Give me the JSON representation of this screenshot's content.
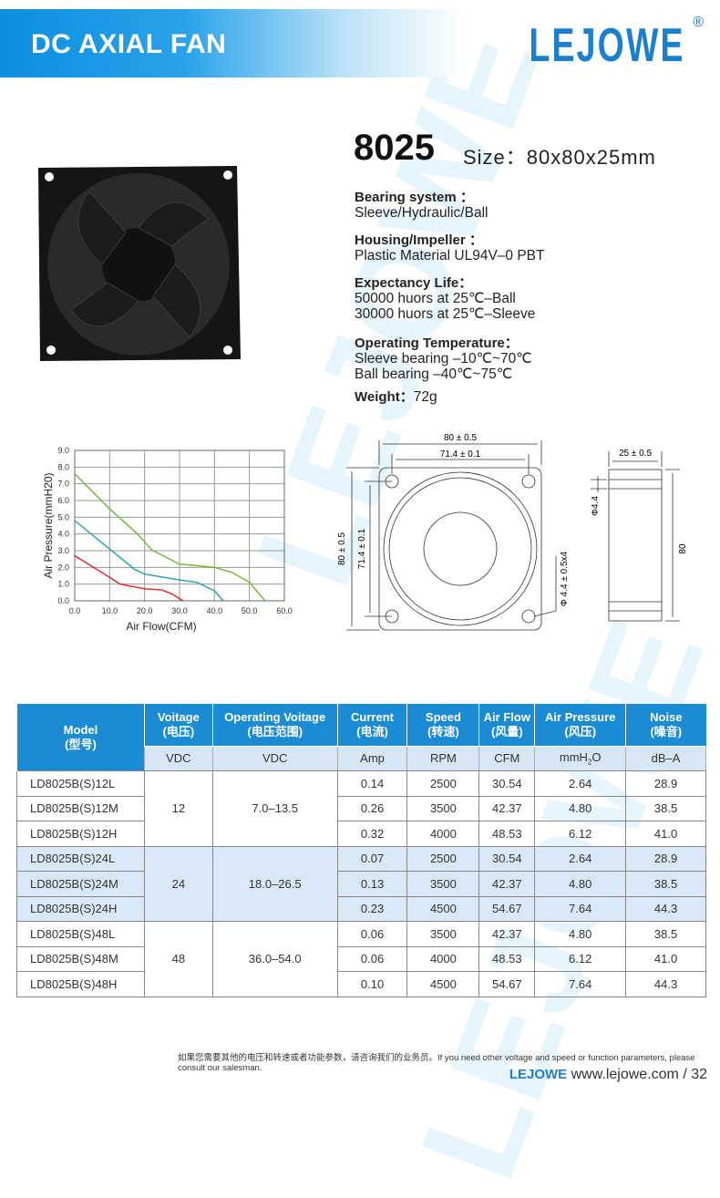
{
  "header": {
    "banner": "DC AXIAL FAN",
    "brand": "LEJOWE",
    "reg": "®"
  },
  "product": {
    "model": "8025",
    "size": "Size：80x80x25mm",
    "specs": [
      {
        "label": "Bearing system ：",
        "lines": [
          "Sleeve/Hydraulic/Ball"
        ]
      },
      {
        "label": "Housing/Impeller ：",
        "lines": [
          "Plastic Material UL94V–0 PBT"
        ]
      },
      {
        "label": "Expectancy Life：",
        "lines": [
          "50000 huors at 25℃–Ball",
          "30000 huors at 25℃–Sleeve"
        ]
      },
      {
        "label": "Operating Temperature：",
        "lines": [
          "Sleeve bearing –10℃~70℃",
          "Ball  bearing –40℃~75℃"
        ]
      }
    ],
    "weight_label": "Weight：",
    "weight": "72g"
  },
  "drawing": {
    "w": "80 ± 0.5",
    "hole": "71.4 ± 0.1",
    "h": "80 ± 0.5",
    "hole_v": "71.4 ± 0.1",
    "hole_d": "Φ 4.4 ± 0.5x4",
    "depth": "25 ± 0.5",
    "phi": "Φ4.4",
    "side_h": "80"
  },
  "chart_data": {
    "type": "line",
    "xlabel": "Air Flow(CFM)",
    "ylabel": "Air Pressure(mmH20)",
    "xlim": [
      0,
      60
    ],
    "ylim": [
      0,
      9
    ],
    "grid": true,
    "xticks": [
      "0.0",
      "10.0",
      "20.0",
      "30.0",
      "40.0",
      "50.0",
      "60.0"
    ],
    "yticks": [
      "0.0",
      "1.0",
      "2.0",
      "3.0",
      "4.0",
      "5.0",
      "6.0",
      "7.0",
      "8.0",
      "9.0"
    ],
    "series": [
      {
        "color": "#6cb52d",
        "points": [
          [
            0,
            7.6
          ],
          [
            10,
            5.5
          ],
          [
            18,
            4.0
          ],
          [
            22,
            3.05
          ],
          [
            30,
            2.2
          ],
          [
            40,
            2.0
          ],
          [
            45,
            1.7
          ],
          [
            50,
            1.1
          ],
          [
            54.5,
            0
          ]
        ]
      },
      {
        "color": "#1f9eb5",
        "points": [
          [
            0,
            4.8
          ],
          [
            10,
            3.1
          ],
          [
            17,
            1.9
          ],
          [
            20,
            1.6
          ],
          [
            30,
            1.25
          ],
          [
            35,
            1.1
          ],
          [
            40,
            0.6
          ],
          [
            42.5,
            0
          ]
        ]
      },
      {
        "color": "#e2231a",
        "points": [
          [
            0,
            2.7
          ],
          [
            10,
            1.4
          ],
          [
            13,
            1.0
          ],
          [
            20,
            0.72
          ],
          [
            25,
            0.65
          ],
          [
            28,
            0.4
          ],
          [
            31,
            0
          ]
        ]
      }
    ]
  },
  "table": {
    "headers": [
      [
        "Model",
        "(型号)"
      ],
      [
        "Voitage",
        "(电压)"
      ],
      [
        "Operating Voitage",
        "(电压范围)"
      ],
      [
        "Current",
        "(电流)"
      ],
      [
        "Speed",
        "(转速)"
      ],
      [
        "Air Flow",
        "(风量)"
      ],
      [
        "Air Pressure",
        "(风压)"
      ],
      [
        "Noise",
        "(噪音)"
      ]
    ],
    "units": [
      "VDC",
      "VDC",
      "Amp",
      "RPM",
      "CFM",
      "mmH",
      "2",
      "O",
      "dB–A"
    ],
    "groups": [
      {
        "voltage": "12",
        "range": "7.0–13.5",
        "rows": [
          [
            "LD8025B(S)12L",
            "0.14",
            "2500",
            "30.54",
            "2.64",
            "28.9"
          ],
          [
            "LD8025B(S)12M",
            "0.26",
            "3500",
            "42.37",
            "4.80",
            "38.5"
          ],
          [
            "LD8025B(S)12H",
            "0.32",
            "4000",
            "48.53",
            "6.12",
            "41.0"
          ]
        ]
      },
      {
        "voltage": "24",
        "range": "18.0–26.5",
        "rows": [
          [
            "LD8025B(S)24L",
            "0.07",
            "2500",
            "30.54",
            "2.64",
            "28.9"
          ],
          [
            "LD8025B(S)24M",
            "0.13",
            "3500",
            "42.37",
            "4.80",
            "38.5"
          ],
          [
            "LD8025B(S)24H",
            "0.23",
            "4500",
            "54.67",
            "7.64",
            "44.3"
          ]
        ]
      },
      {
        "voltage": "48",
        "range": "36.0–54.0",
        "rows": [
          [
            "LD8025B(S)48L",
            "0.06",
            "3500",
            "42.37",
            "4.80",
            "38.5"
          ],
          [
            "LD8025B(S)48M",
            "0.06",
            "4000",
            "48.53",
            "6.12",
            "41.0"
          ],
          [
            "LD8025B(S)48H",
            "0.10",
            "4500",
            "54.67",
            "7.64",
            "44.3"
          ]
        ]
      }
    ]
  },
  "footer": {
    "note": "如果您需要其他的电压和转速或者功能参数，请咨询我们的业务员。If you need other voltage and speed or function parameters, please consult our salesman.",
    "brand": "LEJOWE",
    "site": "www.lejowe.com / 32"
  }
}
